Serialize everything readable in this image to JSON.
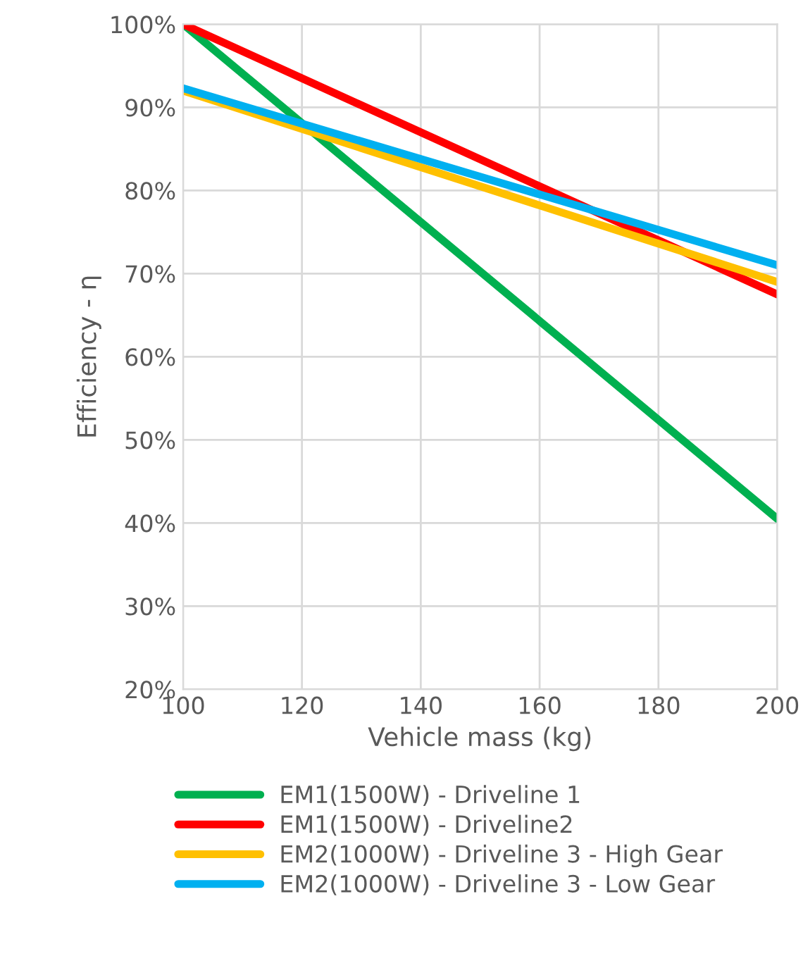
{
  "chart_data": {
    "type": "line",
    "xlabel": "Vehicle mass (kg)",
    "ylabel": "Efficiency - η",
    "x": [
      100,
      200
    ],
    "series": [
      {
        "name": "EM1(1500W) - Driveline 1",
        "color": "#00b050",
        "values": [
          100,
          40.5
        ]
      },
      {
        "name": "EM1(1500W) - Driveline2",
        "color": "#ff0000",
        "values": [
          100,
          67.5
        ]
      },
      {
        "name": "EM2(1000W) - Driveline 3 - High Gear",
        "color": "#ffc000",
        "values": [
          92,
          69
        ]
      },
      {
        "name": "EM2(1000W) - Driveline 3 - Low Gear",
        "color": "#00b0f0",
        "values": [
          92.3,
          71
        ]
      }
    ],
    "xlim": [
      100,
      200
    ],
    "xticks": [
      100,
      120,
      140,
      160,
      180,
      200
    ],
    "ylim": [
      20,
      100
    ],
    "yticks": [
      {
        "value": 20,
        "label": "20%"
      },
      {
        "value": 30,
        "label": "30%"
      },
      {
        "value": 40,
        "label": "40%"
      },
      {
        "value": 50,
        "label": "50%"
      },
      {
        "value": 60,
        "label": "60%"
      },
      {
        "value": 70,
        "label": "70%"
      },
      {
        "value": 80,
        "label": "80%"
      },
      {
        "value": 90,
        "label": "90%"
      },
      {
        "value": 100,
        "label": "100%"
      }
    ],
    "grid": true,
    "legend": "bottom",
    "marker": "none",
    "line_style": "solid"
  }
}
